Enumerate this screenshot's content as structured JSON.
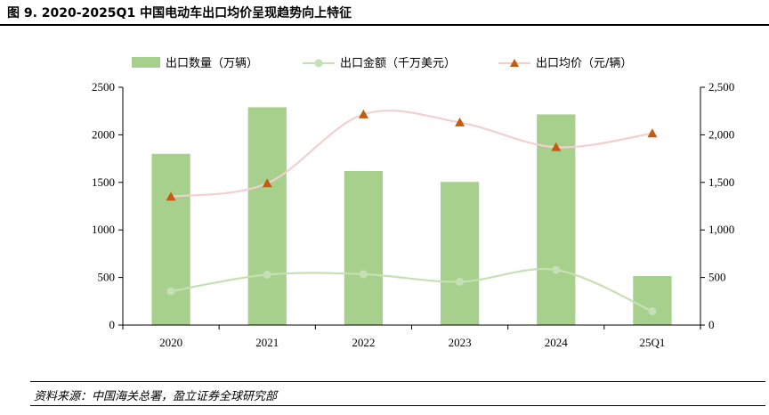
{
  "figure_title": "图 9. 2020-2025Q1 中国电动车出口均价呈现趋势向上特征",
  "source": "资料来源：中国海关总署，盈立证券全球研究部",
  "colors": {
    "bar": "#a8d08d",
    "amount_line": "#c5e0b4",
    "price_line": "#f2d0d0",
    "price_marker": "#c55a11"
  },
  "chart_data": {
    "type": "bar",
    "categories": [
      "2020",
      "2021",
      "2022",
      "2023",
      "2024",
      "25Q1"
    ],
    "series": [
      {
        "name": "出口数量（万辆）",
        "type": "bar",
        "axis": "left",
        "values": [
          1800,
          2290,
          1620,
          1505,
          2215,
          515
        ]
      },
      {
        "name": "出口金额（千万美元）",
        "type": "line",
        "axis": "left",
        "marker": "circle",
        "values": [
          355,
          530,
          535,
          455,
          580,
          145
        ]
      },
      {
        "name": "出口均价（元/辆）",
        "type": "line",
        "axis": "right",
        "marker": "triangle",
        "values": [
          1350,
          1490,
          2215,
          2130,
          1870,
          2015
        ]
      }
    ],
    "left_axis": {
      "min": 0,
      "max": 2500,
      "ticks": [
        "0",
        "500",
        "1000",
        "1500",
        "2000",
        "2500"
      ]
    },
    "right_axis": {
      "min": 0,
      "max": 2500,
      "ticks": [
        "0",
        "500",
        "1,000",
        "1,500",
        "2,000",
        "2,500"
      ]
    },
    "legend_position": "top",
    "grid": false
  }
}
